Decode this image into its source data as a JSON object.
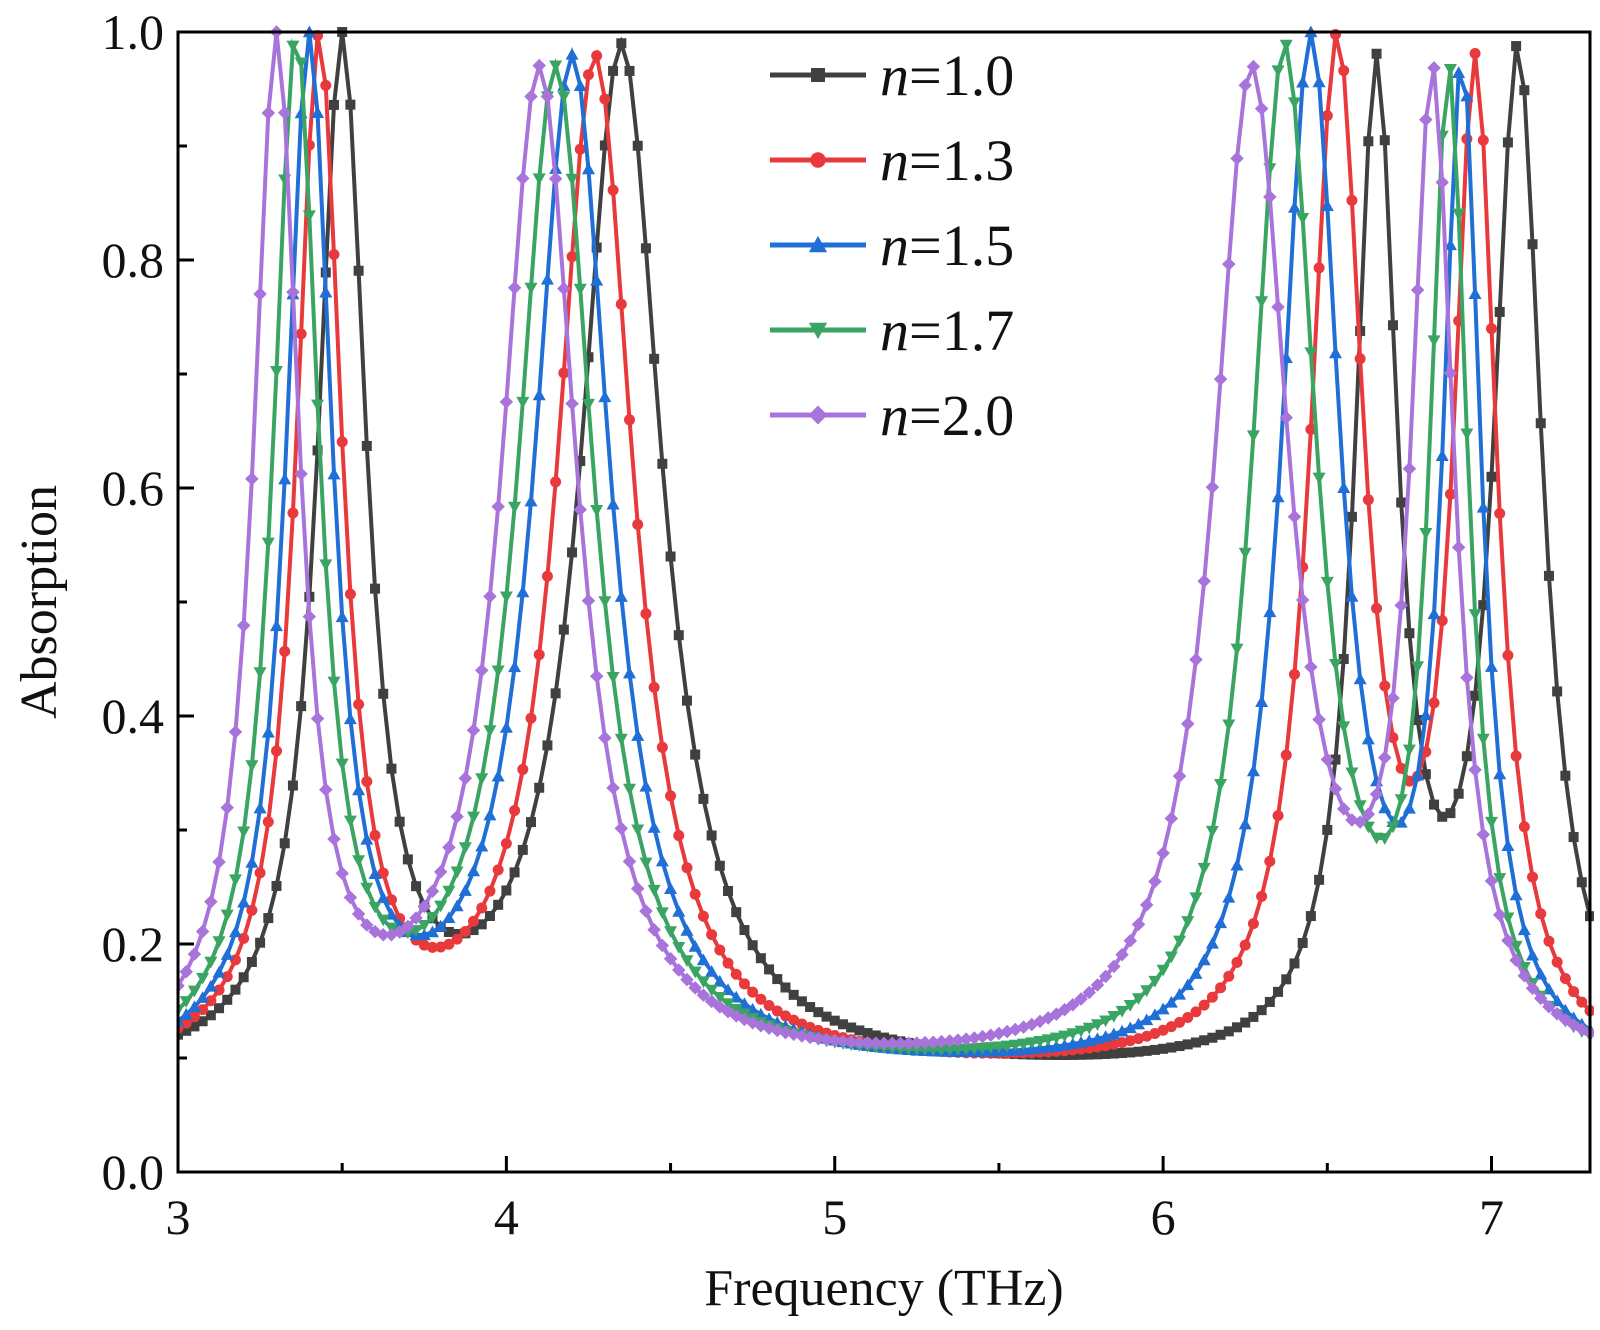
{
  "chart_data": {
    "type": "line",
    "xlabel": "Frequency (THz)",
    "ylabel": "Absorption",
    "xlim": [
      3.0,
      7.3
    ],
    "ylim": [
      0.0,
      1.0
    ],
    "xticks": [
      3,
      4,
      5,
      6,
      7
    ],
    "xtick_labels": [
      "3",
      "4",
      "5",
      "6",
      "7"
    ],
    "yticks": [
      0.0,
      0.2,
      0.4,
      0.6,
      0.8,
      1.0
    ],
    "ytick_labels": [
      "0.0",
      "0.2",
      "0.4",
      "0.6",
      "0.8",
      "1.0"
    ],
    "x_step": 0.025,
    "legend_position": "top-center",
    "legend_prefix": "n",
    "series": [
      {
        "name": "1.0",
        "legend_label": "=1.0",
        "color": "#404040",
        "marker": "square",
        "baseline": 0.08,
        "peaks": [
          {
            "f": 3.5,
            "a": 1.0,
            "w": 0.09
          },
          {
            "f": 4.35,
            "a": 0.99,
            "w": 0.15
          },
          {
            "f": 6.65,
            "a": 0.98,
            "w": 0.08
          },
          {
            "f": 7.08,
            "a": 0.99,
            "w": 0.09
          }
        ]
      },
      {
        "name": "1.3",
        "legend_label": "=1.3",
        "color": "#e8393c",
        "marker": "circle",
        "baseline": 0.08,
        "peaks": [
          {
            "f": 3.43,
            "a": 1.0,
            "w": 0.085
          },
          {
            "f": 4.27,
            "a": 0.98,
            "w": 0.14
          },
          {
            "f": 6.53,
            "a": 1.0,
            "w": 0.1
          },
          {
            "f": 6.95,
            "a": 0.98,
            "w": 0.08
          }
        ]
      },
      {
        "name": "1.5",
        "legend_label": "=1.5",
        "color": "#1f6fd6",
        "marker": "triangle-up",
        "baseline": 0.08,
        "peaks": [
          {
            "f": 3.4,
            "a": 1.0,
            "w": 0.085
          },
          {
            "f": 4.2,
            "a": 0.98,
            "w": 0.14
          },
          {
            "f": 6.45,
            "a": 1.0,
            "w": 0.11
          },
          {
            "f": 6.91,
            "a": 0.98,
            "w": 0.07
          }
        ]
      },
      {
        "name": "1.7",
        "legend_label": "=1.7",
        "color": "#3aa562",
        "marker": "triangle-down",
        "baseline": 0.08,
        "peaks": [
          {
            "f": 3.36,
            "a": 1.0,
            "w": 0.085
          },
          {
            "f": 4.15,
            "a": 0.97,
            "w": 0.14
          },
          {
            "f": 6.37,
            "a": 0.99,
            "w": 0.12
          },
          {
            "f": 6.87,
            "a": 0.97,
            "w": 0.07
          }
        ]
      },
      {
        "name": "2.0",
        "legend_label": "=2.0",
        "color": "#a874db",
        "marker": "diamond",
        "baseline": 0.08,
        "peaks": [
          {
            "f": 3.3,
            "a": 1.0,
            "w": 0.085
          },
          {
            "f": 4.1,
            "a": 0.97,
            "w": 0.14
          },
          {
            "f": 6.27,
            "a": 0.97,
            "w": 0.14
          },
          {
            "f": 6.82,
            "a": 0.97,
            "w": 0.08
          }
        ]
      }
    ]
  }
}
